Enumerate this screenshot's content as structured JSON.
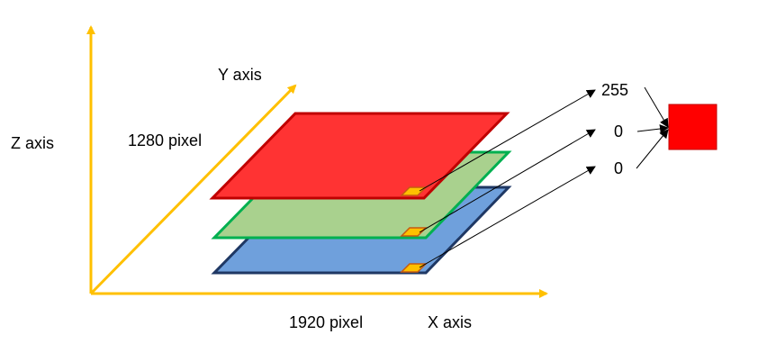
{
  "labels": {
    "z_axis": "Z axis",
    "y_axis": "Y axis",
    "x_axis": "X axis",
    "height": "1280 pixel",
    "width": "1920 pixel"
  },
  "values": {
    "red": "255",
    "green": "0",
    "blue": "0"
  },
  "colors": {
    "axis": "#FFC000",
    "red_layer_fill": "#FF3333",
    "red_layer_edge": "#C00000",
    "green_layer_fill": "#A9D18E",
    "green_layer_edge": "#00B050",
    "blue_layer_fill": "#6FA0DC",
    "blue_layer_edge": "#1F3864",
    "pixel_fill": "#FFC000",
    "pixel_edge": "#C55A11",
    "result_swatch": "#FF0000",
    "connector": "#000000"
  },
  "icons": {
    "result": "red-pixel-swatch"
  }
}
